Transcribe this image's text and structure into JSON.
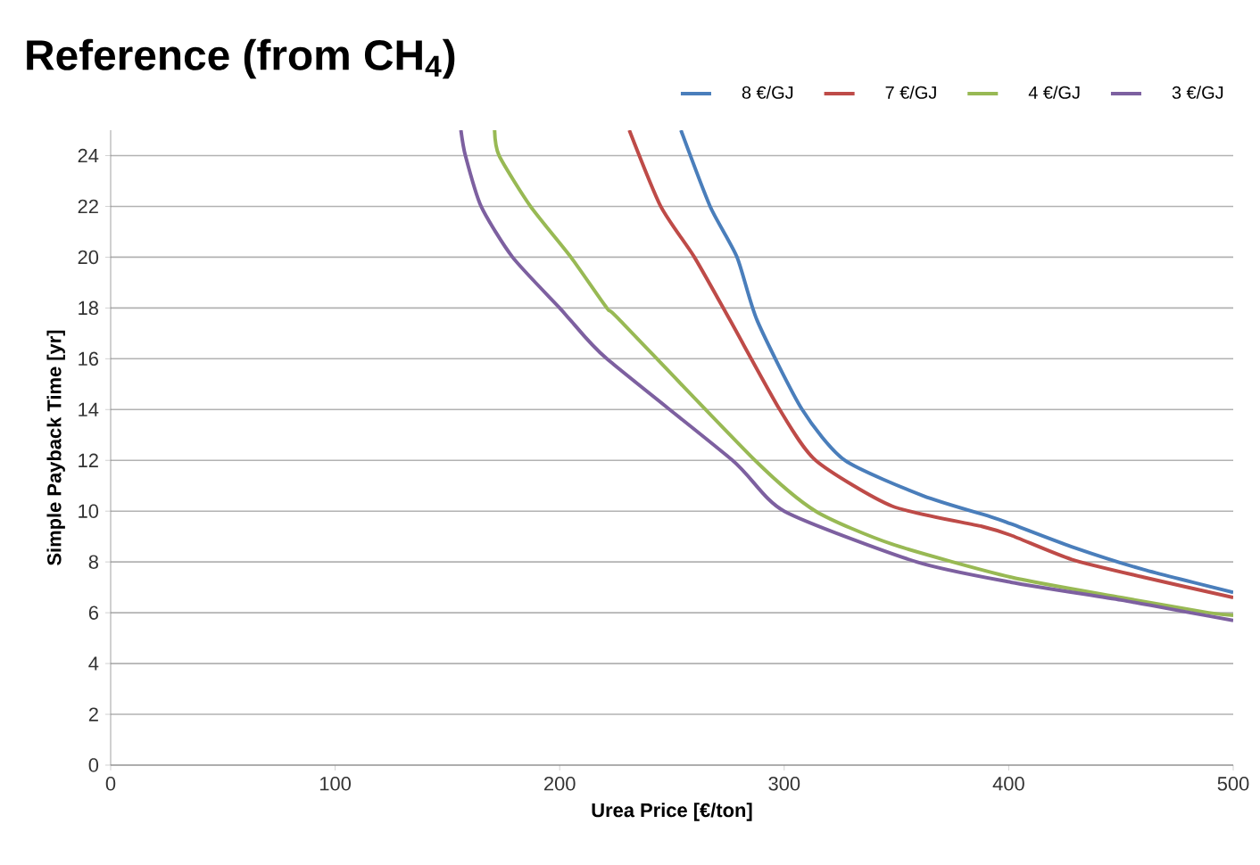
{
  "chart_data": {
    "type": "line",
    "title": "Reference (from CH$_{4}$)",
    "xlabel": "Urea Price [€/ton]",
    "ylabel": "Simple Payback Time [yr]",
    "xlim": [
      0,
      500
    ],
    "ylim": [
      0,
      25
    ],
    "xticks": [
      0,
      100,
      200,
      300,
      400,
      500
    ],
    "yticks": [
      0,
      2,
      4,
      6,
      8,
      10,
      12,
      14,
      16,
      18,
      20,
      22,
      24
    ],
    "grid": "y",
    "legend": "top right",
    "marker": "none",
    "line_style": "solid",
    "series": [
      {
        "name": "8 €/GJ",
        "color": "#4a7ebb",
        "x": [
          254,
          267,
          279,
          288,
          308,
          327,
          362,
          393,
          401,
          428,
          460,
          500
        ],
        "values": [
          25,
          22,
          20,
          17.5,
          14,
          12,
          10.6,
          9.75,
          9.5,
          8.6,
          7.7,
          6.8
        ]
      },
      {
        "name": "7 €/GJ",
        "color": "#be4b48",
        "x": [
          231,
          245,
          260,
          276,
          298,
          314,
          348,
          388,
          401,
          428,
          460,
          500
        ],
        "values": [
          25,
          22,
          20,
          17.5,
          14,
          12,
          10.2,
          9.4,
          9.05,
          8.1,
          7.4,
          6.6
        ]
      },
      {
        "name": "4 €/GJ",
        "color": "#98b954",
        "x": [
          171,
          173,
          187,
          205,
          221,
          227,
          287,
          314,
          348,
          401,
          450,
          489,
          500
        ],
        "values": [
          25,
          24,
          22,
          20,
          18,
          17.5,
          12,
          10,
          8.7,
          7.4,
          6.6,
          6,
          5.9
        ]
      },
      {
        "name": "3 €/GJ",
        "color": "#7d60a0",
        "x": [
          156,
          158,
          165,
          179,
          200,
          205,
          221,
          277,
          300,
          359,
          401,
          450,
          481,
          500
        ],
        "values": [
          25,
          24,
          22,
          20,
          18,
          17.5,
          16,
          12,
          10,
          8,
          7.2,
          6.5,
          6,
          5.7
        ]
      }
    ]
  }
}
